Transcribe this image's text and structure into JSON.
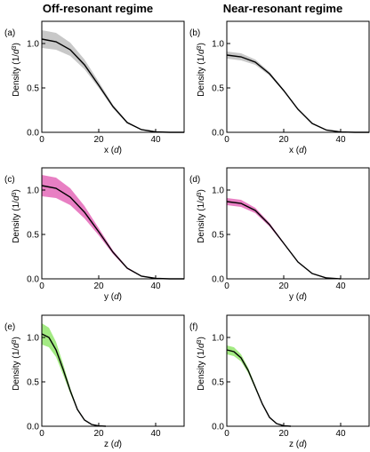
{
  "columns": [
    "Off-resonant regime",
    "Near-resonant regime"
  ],
  "colors": {
    "gray": "#c8c8c8",
    "pink": "#e87fc3",
    "green": "#a3ea83",
    "line": "#000000"
  },
  "chart_data": [
    {
      "label": "(a)",
      "type": "line",
      "column": 0,
      "row": 0,
      "color_key": "gray",
      "xlabel": "x (d)",
      "ylabel": "Density (1/d³)",
      "xlim": [
        0,
        50
      ],
      "ylim": [
        0,
        1.25
      ],
      "xticks": [
        0,
        20,
        40
      ],
      "yticks": [
        0.0,
        0.5,
        1.0
      ],
      "series": [
        {
          "x": [
            0,
            5,
            10,
            15,
            20,
            25,
            30,
            35,
            40,
            45,
            50
          ],
          "y": [
            1.05,
            1.02,
            0.93,
            0.76,
            0.53,
            0.29,
            0.11,
            0.03,
            0.005,
            0.0,
            0.0
          ]
        }
      ],
      "band": {
        "x": [
          0,
          5,
          10,
          15,
          20,
          25,
          30,
          35,
          40,
          45,
          50
        ],
        "lower": [
          0.95,
          0.93,
          0.86,
          0.71,
          0.5,
          0.27,
          0.1,
          0.025,
          0.004,
          0.0,
          0.0
        ],
        "upper": [
          1.15,
          1.12,
          1.01,
          0.82,
          0.57,
          0.31,
          0.12,
          0.035,
          0.006,
          0.0,
          0.0
        ]
      }
    },
    {
      "label": "(b)",
      "type": "line",
      "column": 1,
      "row": 0,
      "color_key": "gray",
      "xlabel": "x (d)",
      "ylabel": "Density (1/d³)",
      "xlim": [
        0,
        50
      ],
      "ylim": [
        0,
        1.25
      ],
      "xticks": [
        0,
        20,
        40
      ],
      "yticks": [
        0.0,
        0.5,
        1.0
      ],
      "series": [
        {
          "x": [
            0,
            5,
            10,
            15,
            20,
            25,
            30,
            35,
            40,
            45,
            50
          ],
          "y": [
            0.87,
            0.85,
            0.79,
            0.66,
            0.47,
            0.26,
            0.1,
            0.025,
            0.004,
            0.0,
            0.0
          ]
        }
      ],
      "band": {
        "x": [
          0,
          5,
          10,
          15,
          20,
          25,
          30,
          35,
          40,
          45,
          50
        ],
        "lower": [
          0.83,
          0.81,
          0.76,
          0.64,
          0.46,
          0.255,
          0.098,
          0.024,
          0.004,
          0.0,
          0.0
        ],
        "upper": [
          0.91,
          0.89,
          0.82,
          0.68,
          0.48,
          0.265,
          0.102,
          0.026,
          0.004,
          0.0,
          0.0
        ]
      }
    },
    {
      "label": "(c)",
      "type": "line",
      "column": 0,
      "row": 1,
      "color_key": "pink",
      "xlabel": "y (d)",
      "ylabel": "Density (1/d³)",
      "xlim": [
        0,
        50
      ],
      "ylim": [
        0,
        1.25
      ],
      "xticks": [
        0,
        20,
        40
      ],
      "yticks": [
        0.0,
        0.5,
        1.0
      ],
      "series": [
        {
          "x": [
            0,
            5,
            10,
            15,
            20,
            25,
            30,
            35,
            40,
            45,
            50
          ],
          "y": [
            1.05,
            1.02,
            0.92,
            0.75,
            0.53,
            0.3,
            0.12,
            0.03,
            0.005,
            0.0,
            0.0
          ]
        }
      ],
      "band": {
        "x": [
          0,
          5,
          10,
          15,
          20,
          25,
          30,
          35,
          40,
          45,
          50
        ],
        "lower": [
          0.93,
          0.91,
          0.83,
          0.68,
          0.49,
          0.28,
          0.11,
          0.025,
          0.004,
          0.0,
          0.0
        ],
        "upper": [
          1.17,
          1.14,
          1.02,
          0.82,
          0.57,
          0.32,
          0.13,
          0.035,
          0.006,
          0.0,
          0.0
        ]
      }
    },
    {
      "label": "(d)",
      "type": "line",
      "column": 1,
      "row": 1,
      "color_key": "pink",
      "xlabel": "y (d)",
      "ylabel": "Density (1/d³)",
      "xlim": [
        0,
        50
      ],
      "ylim": [
        0,
        1.25
      ],
      "xticks": [
        0,
        20,
        40
      ],
      "yticks": [
        0.0,
        0.5,
        1.0
      ],
      "series": [
        {
          "x": [
            0,
            5,
            10,
            15,
            20,
            25,
            30,
            35,
            40
          ],
          "y": [
            0.87,
            0.85,
            0.77,
            0.61,
            0.4,
            0.19,
            0.06,
            0.01,
            0.0
          ]
        }
      ],
      "band": {
        "x": [
          0,
          5,
          10,
          15,
          20,
          25,
          30,
          35,
          40
        ],
        "lower": [
          0.83,
          0.81,
          0.74,
          0.59,
          0.39,
          0.185,
          0.058,
          0.01,
          0.0
        ],
        "upper": [
          0.91,
          0.89,
          0.8,
          0.63,
          0.41,
          0.195,
          0.062,
          0.01,
          0.0
        ]
      }
    },
    {
      "label": "(e)",
      "type": "line",
      "column": 0,
      "row": 2,
      "color_key": "green",
      "xlabel": "z (d)",
      "ylabel": "Density (1/d³)",
      "xlim": [
        0,
        50
      ],
      "ylim": [
        0,
        1.25
      ],
      "xticks": [
        0,
        20,
        40
      ],
      "yticks": [
        0.0,
        0.5,
        1.0
      ],
      "series": [
        {
          "x": [
            0,
            2.5,
            5,
            7.5,
            10,
            12.5,
            15,
            17.5,
            20,
            22.5
          ],
          "y": [
            1.04,
            1.0,
            0.86,
            0.64,
            0.4,
            0.19,
            0.07,
            0.02,
            0.004,
            0.0
          ]
        }
      ],
      "band": {
        "x": [
          0,
          2.5,
          5,
          7.5,
          10,
          12.5,
          15,
          17.5,
          20,
          22.5
        ],
        "lower": [
          0.92,
          0.89,
          0.78,
          0.58,
          0.37,
          0.18,
          0.065,
          0.018,
          0.003,
          0.0
        ],
        "upper": [
          1.16,
          1.11,
          0.95,
          0.7,
          0.43,
          0.2,
          0.075,
          0.022,
          0.005,
          0.0
        ]
      }
    },
    {
      "label": "(f)",
      "type": "line",
      "column": 1,
      "row": 2,
      "color_key": "green",
      "xlabel": "z (d)",
      "ylabel": "Density (1/d³)",
      "xlim": [
        0,
        50
      ],
      "ylim": [
        0,
        1.25
      ],
      "xticks": [
        0,
        20,
        40
      ],
      "yticks": [
        0.0,
        0.5,
        1.0
      ],
      "series": [
        {
          "x": [
            0,
            2.5,
            5,
            7.5,
            10,
            12.5,
            15,
            17.5,
            20,
            22.5
          ],
          "y": [
            0.86,
            0.84,
            0.77,
            0.63,
            0.44,
            0.25,
            0.1,
            0.03,
            0.006,
            0.0
          ]
        }
      ],
      "band": {
        "x": [
          0,
          2.5,
          5,
          7.5,
          10,
          12.5,
          15,
          17.5,
          20,
          22.5
        ],
        "lower": [
          0.81,
          0.79,
          0.73,
          0.6,
          0.42,
          0.24,
          0.095,
          0.028,
          0.005,
          0.0
        ],
        "upper": [
          0.91,
          0.89,
          0.81,
          0.66,
          0.46,
          0.26,
          0.105,
          0.032,
          0.007,
          0.0
        ]
      }
    }
  ]
}
